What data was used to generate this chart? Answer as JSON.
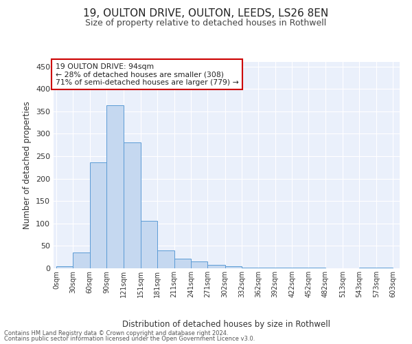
{
  "title1": "19, OULTON DRIVE, OULTON, LEEDS, LS26 8EN",
  "title2": "Size of property relative to detached houses in Rothwell",
  "xlabel": "Distribution of detached houses by size in Rothwell",
  "ylabel": "Number of detached properties",
  "annotation_line1": "19 OULTON DRIVE: 94sqm",
  "annotation_line2": "← 28% of detached houses are smaller (308)",
  "annotation_line3": "71% of semi-detached houses are larger (779) →",
  "footer1": "Contains HM Land Registry data © Crown copyright and database right 2024.",
  "footer2": "Contains public sector information licensed under the Open Government Licence v3.0.",
  "bar_edges": [
    0,
    30,
    60,
    90,
    121,
    151,
    181,
    211,
    241,
    271,
    302,
    332,
    362,
    392,
    422,
    452,
    482,
    513,
    543,
    573,
    603
  ],
  "bar_heights": [
    4,
    35,
    236,
    363,
    281,
    106,
    40,
    21,
    15,
    8,
    4,
    1,
    1,
    1,
    1,
    1,
    0,
    0,
    2,
    1
  ],
  "bar_color": "#c5d8f0",
  "bar_edge_color": "#5b9bd5",
  "bg_color": "#eaf0fb",
  "grid_color": "#ffffff",
  "annotation_box_color": "#cc0000",
  "ylim": [
    0,
    460
  ],
  "yticks": [
    0,
    50,
    100,
    150,
    200,
    250,
    300,
    350,
    400,
    450
  ]
}
